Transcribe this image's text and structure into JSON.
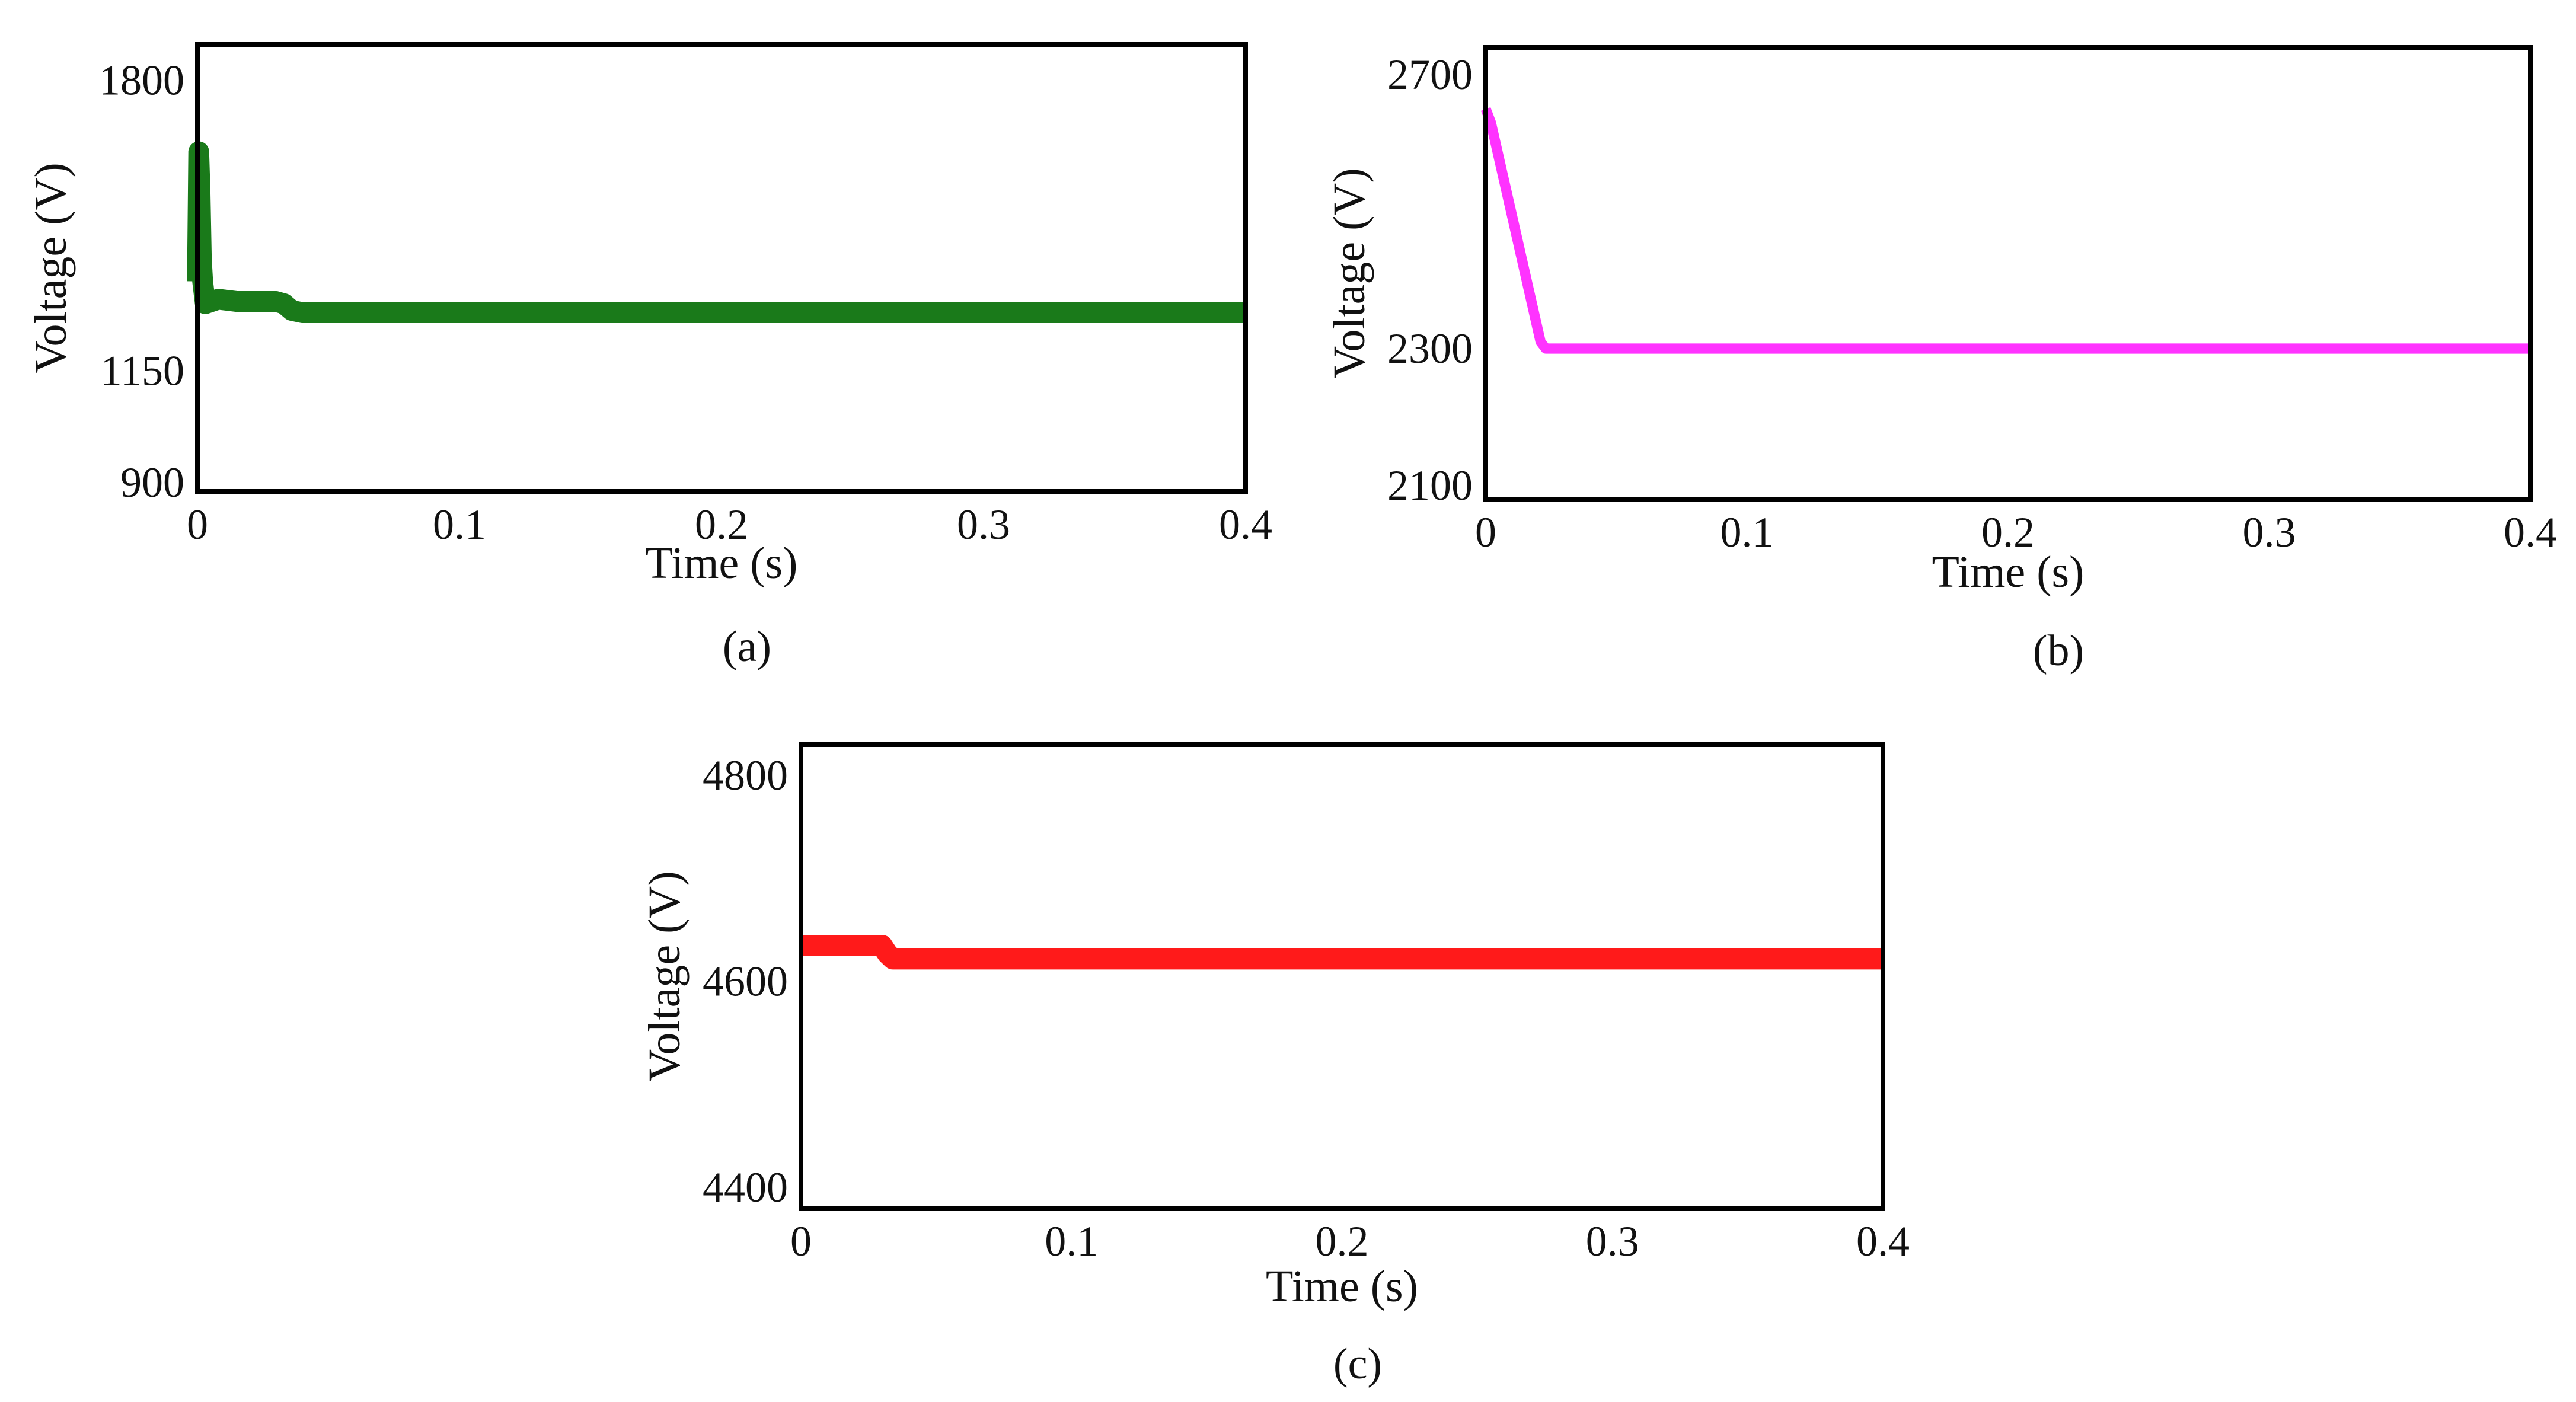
{
  "chart_data": [
    {
      "type": "line",
      "panel": "a",
      "caption": "(a)",
      "xlabel": "Time (s)",
      "ylabel": "Voltage (V)",
      "xlim": [
        0,
        0.4
      ],
      "ylim": [
        880,
        1880
      ],
      "xticks": [
        0,
        0.1,
        0.2,
        0.3,
        0.4
      ],
      "xtick_labels": [
        "0",
        "0.1",
        "0.2",
        "0.3",
        "0.4"
      ],
      "yticks": [
        900,
        1150,
        1800
      ],
      "ytick_labels": [
        "900",
        "1150",
        "1800"
      ],
      "color": "#1a7a1a",
      "series": [
        {
          "name": "Voltage",
          "x": [
            0,
            0.0005,
            0.001,
            0.0015,
            0.002,
            0.003,
            0.008,
            0.015,
            0.025,
            0.03,
            0.033,
            0.036,
            0.04,
            0.1,
            0.2,
            0.3,
            0.4
          ],
          "y": [
            1350,
            1640,
            1550,
            1400,
            1350,
            1300,
            1310,
            1305,
            1305,
            1305,
            1300,
            1285,
            1280,
            1280,
            1280,
            1280,
            1280
          ]
        }
      ],
      "ripple": 18
    },
    {
      "type": "line",
      "panel": "b",
      "caption": "(b)",
      "xlabel": "Time (s)",
      "ylabel": "Voltage (V)",
      "xlim": [
        0,
        0.4
      ],
      "ylim": [
        2080,
        2740
      ],
      "xticks": [
        0,
        0.1,
        0.2,
        0.3,
        0.4
      ],
      "xtick_labels": [
        "0",
        "0.1",
        "0.2",
        "0.3",
        "0.4"
      ],
      "yticks": [
        2100,
        2300,
        2700
      ],
      "ytick_labels": [
        "2100",
        "2300",
        "2700"
      ],
      "color": "#ff33ff",
      "series": [
        {
          "name": "Voltage",
          "x": [
            0,
            0.002,
            0.021,
            0.023,
            0.1,
            0.2,
            0.3,
            0.4
          ],
          "y": [
            2650,
            2630,
            2310,
            2300,
            2300,
            2300,
            2300,
            2300
          ]
        }
      ],
      "ripple": 4
    },
    {
      "type": "line",
      "panel": "c",
      "caption": "(c)",
      "xlabel": "Time (s)",
      "ylabel": "Voltage (V)",
      "xlim": [
        0,
        0.4
      ],
      "ylim": [
        4380,
        4830
      ],
      "xticks": [
        0,
        0.1,
        0.2,
        0.3,
        0.4
      ],
      "xtick_labels": [
        "0",
        "0.1",
        "0.2",
        "0.3",
        "0.4"
      ],
      "yticks": [
        4400,
        4600,
        4800
      ],
      "ytick_labels": [
        "4400",
        "4600",
        "4800"
      ],
      "color": "#ff1a1a",
      "series": [
        {
          "name": "Voltage",
          "x": [
            0,
            0.03,
            0.032,
            0.034,
            0.1,
            0.2,
            0.3,
            0.4
          ],
          "y": [
            4635,
            4635,
            4627,
            4622,
            4622,
            4622,
            4622,
            4622
          ]
        }
      ],
      "ripple": 8
    }
  ]
}
